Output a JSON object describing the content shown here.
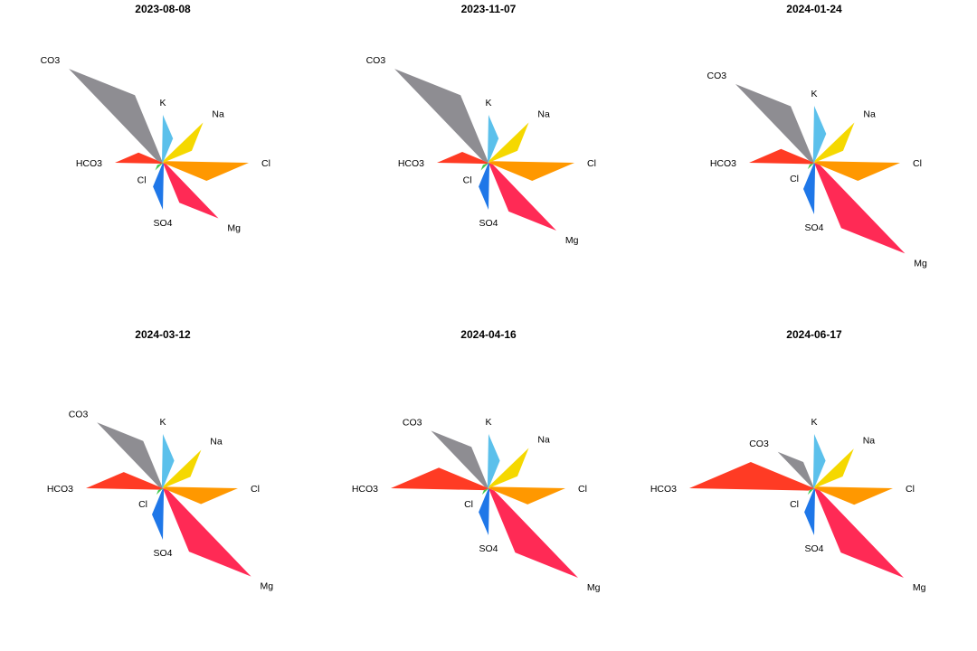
{
  "chart_data": {
    "type": "star-glyph",
    "axis_order": [
      "K",
      "Na",
      "Cl",
      "Mg",
      "SO4",
      "Cl",
      "HCO3",
      "CO3"
    ],
    "series_colors": {
      "K": "#5bc0eb",
      "Na": "#f5d800",
      "Cl": "#ff9800",
      "Mg": "#ff2a55",
      "SO4": "#1f77e8",
      "Cl_2": "#3cc84a",
      "HCO3": "#ff3b24",
      "CO3": "#8e8d92"
    },
    "panels": [
      {
        "title": "2023-08-08",
        "rays": [
          {
            "ion": "K",
            "value": 0.53,
            "color_key": "K"
          },
          {
            "ion": "Na",
            "value": 0.63,
            "color_key": "Na"
          },
          {
            "ion": "Cl",
            "value": 0.95,
            "color_key": "Cl"
          },
          {
            "ion": "Mg",
            "value": 0.87,
            "color_key": "Mg"
          },
          {
            "ion": "SO4",
            "value": 0.52,
            "color_key": "SO4"
          },
          {
            "ion": "Cl",
            "value": 0.12,
            "color_key": "Cl_2"
          },
          {
            "ion": "HCO3",
            "value": 0.53,
            "color_key": "HCO3"
          },
          {
            "ion": "CO3",
            "value": 1.47,
            "color_key": "CO3"
          }
        ]
      },
      {
        "title": "2023-11-07",
        "rays": [
          {
            "ion": "K",
            "value": 0.53,
            "color_key": "K"
          },
          {
            "ion": "Na",
            "value": 0.63,
            "color_key": "Na"
          },
          {
            "ion": "Cl",
            "value": 0.95,
            "color_key": "Cl"
          },
          {
            "ion": "Mg",
            "value": 1.06,
            "color_key": "Mg"
          },
          {
            "ion": "SO4",
            "value": 0.52,
            "color_key": "SO4"
          },
          {
            "ion": "Cl",
            "value": 0.12,
            "color_key": "Cl_2"
          },
          {
            "ion": "HCO3",
            "value": 0.57,
            "color_key": "HCO3"
          },
          {
            "ion": "CO3",
            "value": 1.47,
            "color_key": "CO3"
          }
        ]
      },
      {
        "title": "2024-01-24",
        "rays": [
          {
            "ion": "K",
            "value": 0.63,
            "color_key": "K"
          },
          {
            "ion": "Na",
            "value": 0.63,
            "color_key": "Na"
          },
          {
            "ion": "Cl",
            "value": 0.95,
            "color_key": "Cl"
          },
          {
            "ion": "Mg",
            "value": 1.42,
            "color_key": "Mg"
          },
          {
            "ion": "SO4",
            "value": 0.57,
            "color_key": "SO4"
          },
          {
            "ion": "Cl",
            "value": 0.1,
            "color_key": "Cl_2"
          },
          {
            "ion": "HCO3",
            "value": 0.72,
            "color_key": "HCO3"
          },
          {
            "ion": "CO3",
            "value": 1.23,
            "color_key": "CO3"
          }
        ]
      },
      {
        "title": "2024-03-12",
        "rays": [
          {
            "ion": "K",
            "value": 0.6,
            "color_key": "K"
          },
          {
            "ion": "Na",
            "value": 0.6,
            "color_key": "Na"
          },
          {
            "ion": "Cl",
            "value": 0.83,
            "color_key": "Cl"
          },
          {
            "ion": "Mg",
            "value": 1.38,
            "color_key": "Mg"
          },
          {
            "ion": "SO4",
            "value": 0.57,
            "color_key": "SO4"
          },
          {
            "ion": "Cl",
            "value": 0.1,
            "color_key": "Cl_2"
          },
          {
            "ion": "HCO3",
            "value": 0.85,
            "color_key": "HCO3"
          },
          {
            "ion": "CO3",
            "value": 1.03,
            "color_key": "CO3"
          }
        ]
      },
      {
        "title": "2024-04-16",
        "rays": [
          {
            "ion": "K",
            "value": 0.6,
            "color_key": "K"
          },
          {
            "ion": "Na",
            "value": 0.63,
            "color_key": "Na"
          },
          {
            "ion": "Cl",
            "value": 0.85,
            "color_key": "Cl"
          },
          {
            "ion": "Mg",
            "value": 1.4,
            "color_key": "Mg"
          },
          {
            "ion": "SO4",
            "value": 0.52,
            "color_key": "SO4"
          },
          {
            "ion": "Cl",
            "value": 0.1,
            "color_key": "Cl_2"
          },
          {
            "ion": "HCO3",
            "value": 1.08,
            "color_key": "HCO3"
          },
          {
            "ion": "CO3",
            "value": 0.9,
            "color_key": "CO3"
          }
        ]
      },
      {
        "title": "2024-06-17",
        "rays": [
          {
            "ion": "K",
            "value": 0.6,
            "color_key": "K"
          },
          {
            "ion": "Na",
            "value": 0.62,
            "color_key": "Na"
          },
          {
            "ion": "Cl",
            "value": 0.87,
            "color_key": "Cl"
          },
          {
            "ion": "Mg",
            "value": 1.4,
            "color_key": "Mg"
          },
          {
            "ion": "SO4",
            "value": 0.52,
            "color_key": "SO4"
          },
          {
            "ion": "Cl",
            "value": 0.1,
            "color_key": "Cl_2"
          },
          {
            "ion": "HCO3",
            "value": 1.38,
            "color_key": "HCO3"
          },
          {
            "ion": "CO3",
            "value": 0.57,
            "color_key": "CO3"
          }
        ]
      }
    ]
  }
}
